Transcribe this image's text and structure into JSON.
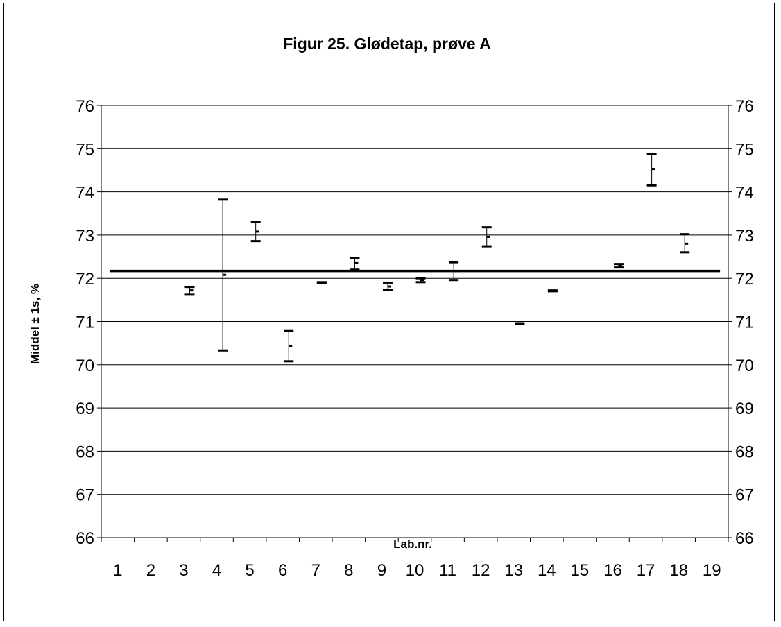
{
  "chart_data": {
    "type": "errorbar",
    "title": "Figur 25. Glødetap, prøve A",
    "xlabel": "Lab.nr.",
    "ylabel": "Middel ± 1s, %",
    "categories": [
      "1",
      "2",
      "3",
      "4",
      "5",
      "6",
      "7",
      "8",
      "9",
      "10",
      "11",
      "12",
      "13",
      "14",
      "15",
      "16",
      "17",
      "18",
      "19"
    ],
    "ylim": [
      66,
      76
    ],
    "yticks": [
      "66",
      "67",
      "68",
      "69",
      "70",
      "71",
      "72",
      "73",
      "74",
      "75",
      "76"
    ],
    "reference_value": 72.17,
    "grid": true,
    "secondary_y_axis": true,
    "points": [
      {
        "lab": "3",
        "mean": 71.72,
        "low": 71.62,
        "high": 71.8
      },
      {
        "lab": "4",
        "mean": 72.08,
        "low": 70.33,
        "high": 73.82
      },
      {
        "lab": "5",
        "mean": 73.08,
        "low": 72.86,
        "high": 73.31
      },
      {
        "lab": "6",
        "mean": 70.43,
        "low": 70.08,
        "high": 70.78
      },
      {
        "lab": "7",
        "mean": 71.9,
        "low": 71.89,
        "high": 71.91
      },
      {
        "lab": "8",
        "mean": 72.35,
        "low": 72.2,
        "high": 72.47
      },
      {
        "lab": "9",
        "mean": 71.81,
        "low": 71.73,
        "high": 71.9
      },
      {
        "lab": "10",
        "mean": 71.96,
        "low": 71.91,
        "high": 72.0
      },
      {
        "lab": "11",
        "mean": 72.17,
        "low": 71.96,
        "high": 72.37
      },
      {
        "lab": "12",
        "mean": 72.96,
        "low": 72.74,
        "high": 73.18
      },
      {
        "lab": "13",
        "mean": 70.95,
        "low": 70.94,
        "high": 70.96
      },
      {
        "lab": "14",
        "mean": 71.71,
        "low": 71.7,
        "high": 71.72
      },
      {
        "lab": "16",
        "mean": 72.29,
        "low": 72.25,
        "high": 72.33
      },
      {
        "lab": "17",
        "mean": 74.53,
        "low": 74.15,
        "high": 74.88
      },
      {
        "lab": "18",
        "mean": 72.8,
        "low": 72.6,
        "high": 73.02
      }
    ]
  }
}
